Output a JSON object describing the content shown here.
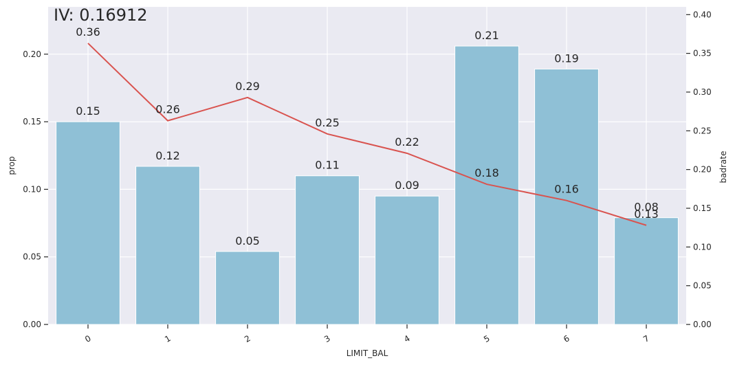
{
  "chart_data": {
    "type": "bar",
    "title": "IV: 0.16912",
    "xlabel": "LIMIT_BAL",
    "ylabel": "prop",
    "y2label": "badrate",
    "categories": [
      "0",
      "1",
      "2",
      "3",
      "4",
      "5",
      "6",
      "7"
    ],
    "ylim": [
      0,
      0.235
    ],
    "y2lim": [
      0,
      0.41
    ],
    "yticks": [
      "0.00",
      "0.05",
      "0.10",
      "0.15",
      "0.20"
    ],
    "y2ticks": [
      "0.00",
      "0.05",
      "0.10",
      "0.15",
      "0.20",
      "0.25",
      "0.30",
      "0.35",
      "0.40"
    ],
    "series": [
      {
        "axis": "left",
        "kind": "bar",
        "values": [
          0.15,
          0.117,
          0.054,
          0.11,
          0.095,
          0.206,
          0.189,
          0.079
        ],
        "labels": [
          "0.15",
          "0.12",
          "0.05",
          "0.11",
          "0.09",
          "0.21",
          "0.19",
          "0.08"
        ],
        "color": "#8fc0d6"
      },
      {
        "axis": "right",
        "kind": "line",
        "values": [
          0.363,
          0.263,
          0.293,
          0.246,
          0.221,
          0.181,
          0.16,
          0.128
        ],
        "labels": [
          "0.36",
          "0.26",
          "0.29",
          "0.25",
          "0.22",
          "0.18",
          "0.16",
          "0.13"
        ],
        "color": "#d9534f"
      }
    ],
    "grid": true,
    "background": "#eaeaf2",
    "grid_color": "#ffffff"
  }
}
